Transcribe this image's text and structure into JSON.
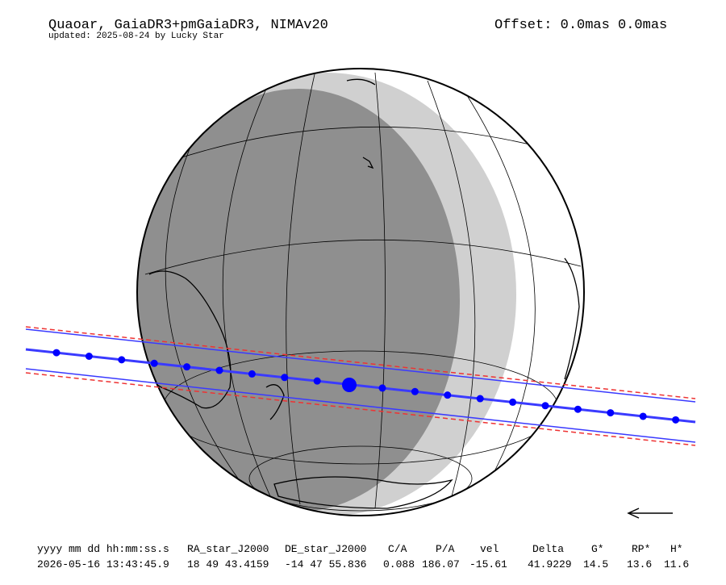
{
  "header": {
    "title": "Quaoar, GaiaDR3+pmGaiaDR3, NIMAv20",
    "updated": "updated: 2025-08-24 by Lucky Star",
    "offset": "Offset: 0.0mas 0.0mas"
  },
  "table": {
    "columns": [
      "yyyy mm dd hh:mm:ss.s",
      "RA_star_J2000",
      "DE_star_J2000",
      "C/A",
      "P/A",
      "vel",
      "Delta",
      "G*",
      "RP*",
      "H*"
    ],
    "rows": [
      [
        "2026-05-16 13:43:45.9",
        "18 49 43.4159",
        "-14 47 55.836",
        "0.088",
        "186.07",
        "-15.61",
        "41.9229",
        "14.5",
        "13.6",
        "11.6"
      ]
    ]
  }
}
